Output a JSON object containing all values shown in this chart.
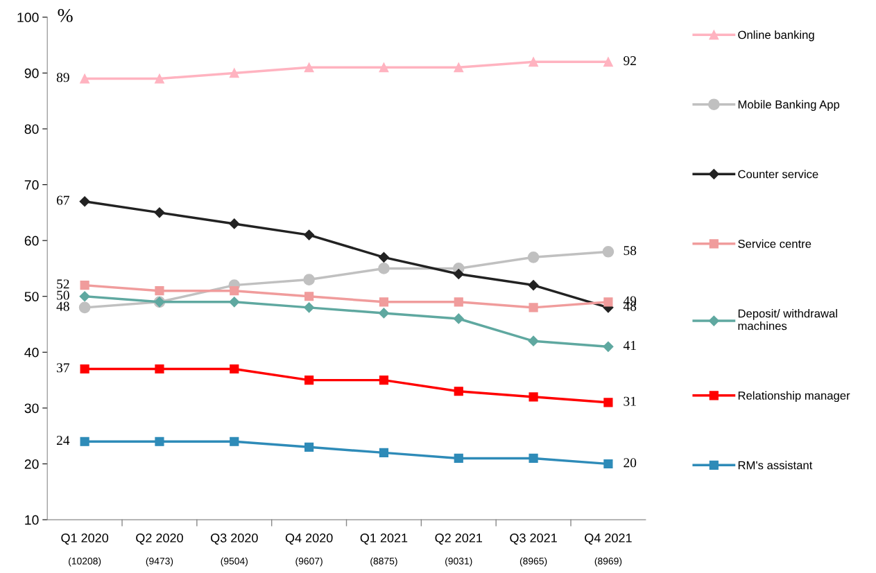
{
  "chart_data": {
    "type": "line",
    "ylabel": "%",
    "categories": [
      "Q1 2020",
      "Q2 2020",
      "Q3 2020",
      "Q4 2020",
      "Q1 2021",
      "Q2 2021",
      "Q3 2021",
      "Q4 2021"
    ],
    "annotations": [
      "(10208)",
      "(9473)",
      "(9504)",
      "(9607)",
      "(8875)",
      "(9031)",
      "(8965)",
      "(8969)"
    ],
    "ylim": [
      10,
      100
    ],
    "yticks": [
      10,
      20,
      30,
      40,
      50,
      60,
      70,
      80,
      90,
      100
    ],
    "grid": false,
    "legend": "right",
    "series": [
      {
        "name": "Online banking",
        "color": "#ffb3c0",
        "marker": "triangle",
        "values": [
          89,
          89,
          90,
          91,
          91,
          91,
          92,
          92
        ],
        "value_labels": [
          "89",
          null,
          null,
          null,
          null,
          null,
          null,
          "92"
        ]
      },
      {
        "name": "Mobile Banking App",
        "color": "#c0c0c0",
        "marker": "circle",
        "values": [
          48,
          49,
          52,
          53,
          55,
          55,
          57,
          58
        ],
        "value_labels": [
          "48",
          null,
          null,
          null,
          null,
          null,
          null,
          "58"
        ]
      },
      {
        "name": "Counter service",
        "color": "#222222",
        "marker": "diamond",
        "values": [
          67,
          65,
          63,
          61,
          57,
          54,
          52,
          48
        ],
        "value_labels": [
          "67",
          null,
          null,
          null,
          null,
          null,
          null,
          "48"
        ]
      },
      {
        "name": "Service centre",
        "color": "#f09c9c",
        "marker": "square",
        "values": [
          52,
          51,
          51,
          50,
          49,
          49,
          48,
          49
        ],
        "value_labels": [
          "52",
          null,
          null,
          null,
          null,
          null,
          null,
          "49"
        ]
      },
      {
        "name": "Deposit/ withdrawal machines",
        "color": "#5fa8a0",
        "marker": "diamond",
        "values": [
          50,
          49,
          49,
          48,
          47,
          46,
          42,
          41
        ],
        "value_labels": [
          "50",
          null,
          null,
          null,
          null,
          null,
          null,
          "41"
        ]
      },
      {
        "name": "Relationship manager",
        "color": "#ff0000",
        "marker": "square",
        "values": [
          37,
          37,
          37,
          35,
          35,
          33,
          32,
          31
        ],
        "value_labels": [
          "37",
          null,
          null,
          null,
          null,
          null,
          null,
          "31"
        ]
      },
      {
        "name": "RM's assistant",
        "color": "#2e8bb8",
        "marker": "square",
        "values": [
          24,
          24,
          24,
          23,
          22,
          21,
          21,
          20
        ],
        "value_labels": [
          "24",
          null,
          null,
          null,
          null,
          null,
          null,
          "20"
        ]
      }
    ]
  }
}
